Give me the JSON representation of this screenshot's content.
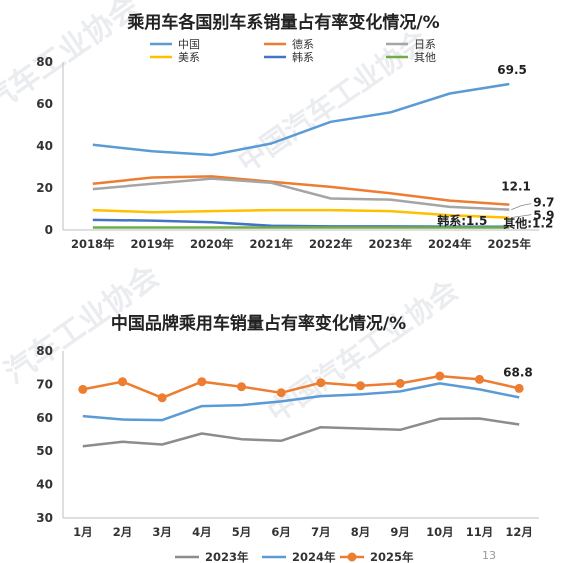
{
  "watermark": {
    "text1": "汽车工业协会",
    "text2": "中国汽车工业协会",
    "text3": "汽车工业协会",
    "text4": "中国汽车工业协会"
  },
  "page_number": "13",
  "chart_data": [
    {
      "type": "line",
      "title": "乘用车各国别车系销量占有率变化情况/%",
      "categories": [
        "2018年",
        "2019年",
        "2020年",
        "2021年",
        "2022年",
        "2023年",
        "2024年",
        "2025年"
      ],
      "ylim": [
        0,
        80
      ],
      "yticks": [
        0,
        20,
        40,
        60,
        80
      ],
      "grid": false,
      "legend": "top",
      "series": [
        {
          "name": "中国",
          "color": "#5b9bd5",
          "values": [
            40.6,
            37.5,
            35.7,
            41.2,
            51.5,
            56,
            65,
            69.5
          ],
          "end_label": "69.5"
        },
        {
          "name": "德系",
          "color": "#ed7d31",
          "values": [
            22,
            25,
            25.5,
            23,
            20.5,
            17.5,
            14,
            12.1
          ],
          "end_label": "12.1"
        },
        {
          "name": "日系",
          "color": "#a5a5a5",
          "values": [
            19.5,
            22,
            24.5,
            22.5,
            15,
            14.5,
            11,
            9.7
          ],
          "end_label": "9.7"
        },
        {
          "name": "美系",
          "color": "#ffc000",
          "values": [
            9.5,
            8.5,
            9,
            9.5,
            9.5,
            9,
            7,
            5.9
          ],
          "end_label": "5.9"
        },
        {
          "name": "韩系",
          "color": "#4472c4",
          "values": [
            4.8,
            4.5,
            3.7,
            2,
            1.7,
            1.7,
            1.6,
            1.5
          ],
          "end_label": "韩系:1.5"
        },
        {
          "name": "其他",
          "color": "#70ad47",
          "values": [
            1.2,
            1.2,
            1.2,
            1.2,
            1.2,
            1.2,
            1.2,
            1.2
          ],
          "end_label": "其他:1.2"
        }
      ]
    },
    {
      "type": "line",
      "title": "中国品牌乘用车销量占有率变化情况/%",
      "categories": [
        "1月",
        "2月",
        "3月",
        "4月",
        "5月",
        "6月",
        "7月",
        "8月",
        "9月",
        "10月",
        "11月",
        "12月"
      ],
      "ylim": [
        30,
        80
      ],
      "yticks": [
        30,
        40,
        50,
        60,
        70,
        80
      ],
      "grid": false,
      "legend": "bottom",
      "series": [
        {
          "name": "2023年",
          "color": "#8c8c8c",
          "marker": false,
          "values": [
            51.5,
            52.8,
            52,
            55.3,
            53.6,
            53.1,
            57.2,
            56.8,
            56.4,
            59.7,
            59.8,
            58
          ]
        },
        {
          "name": "2024年",
          "color": "#5b9bd5",
          "marker": false,
          "values": [
            60.5,
            59.5,
            59.3,
            63.5,
            63.8,
            64.9,
            66.5,
            67,
            67.9,
            70.3,
            68.5,
            66.1
          ]
        },
        {
          "name": "2025年",
          "color": "#ed7d31",
          "marker": true,
          "values": [
            68.5,
            70.8,
            66,
            70.8,
            69.3,
            67.5,
            70.5,
            69.6,
            70.3,
            72.5,
            71.5,
            68.8
          ],
          "end_label": "68.8"
        }
      ]
    }
  ]
}
